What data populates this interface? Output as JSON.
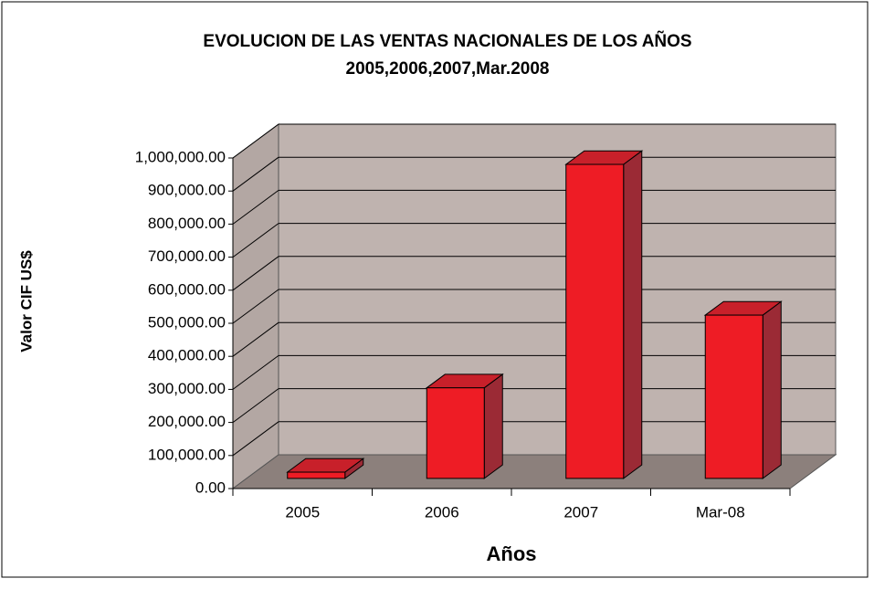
{
  "chart_data": {
    "type": "bar3d",
    "title": [
      "EVOLUCION DE LAS VENTAS NACIONALES  DE LOS AÑOS",
      "2005,2006,2007,Mar.2008"
    ],
    "x_label": "Años",
    "y_label": "Valor CIF US$",
    "categories": [
      "2005",
      "2006",
      "2007",
      "Mar-08"
    ],
    "values": [
      19000,
      274000,
      950000,
      494000
    ],
    "color": "#ee1c25",
    "ylim": [
      0,
      1000000
    ],
    "yticks": [
      {
        "value": 0,
        "label": "0.00"
      },
      {
        "value": 100000,
        "label": "100,000.00"
      },
      {
        "value": 200000,
        "label": "200,000.00"
      },
      {
        "value": 300000,
        "label": "300,000.00"
      },
      {
        "value": 400000,
        "label": "400,000.00"
      },
      {
        "value": 500000,
        "label": "500,000.00"
      },
      {
        "value": 600000,
        "label": "600,000.00"
      },
      {
        "value": 700000,
        "label": "700,000.00"
      },
      {
        "value": 800000,
        "label": "800,000.00"
      },
      {
        "value": 900000,
        "label": "900,000.00"
      },
      {
        "value": 1000000,
        "label": "1,000,000.00"
      }
    ],
    "grid": true
  }
}
